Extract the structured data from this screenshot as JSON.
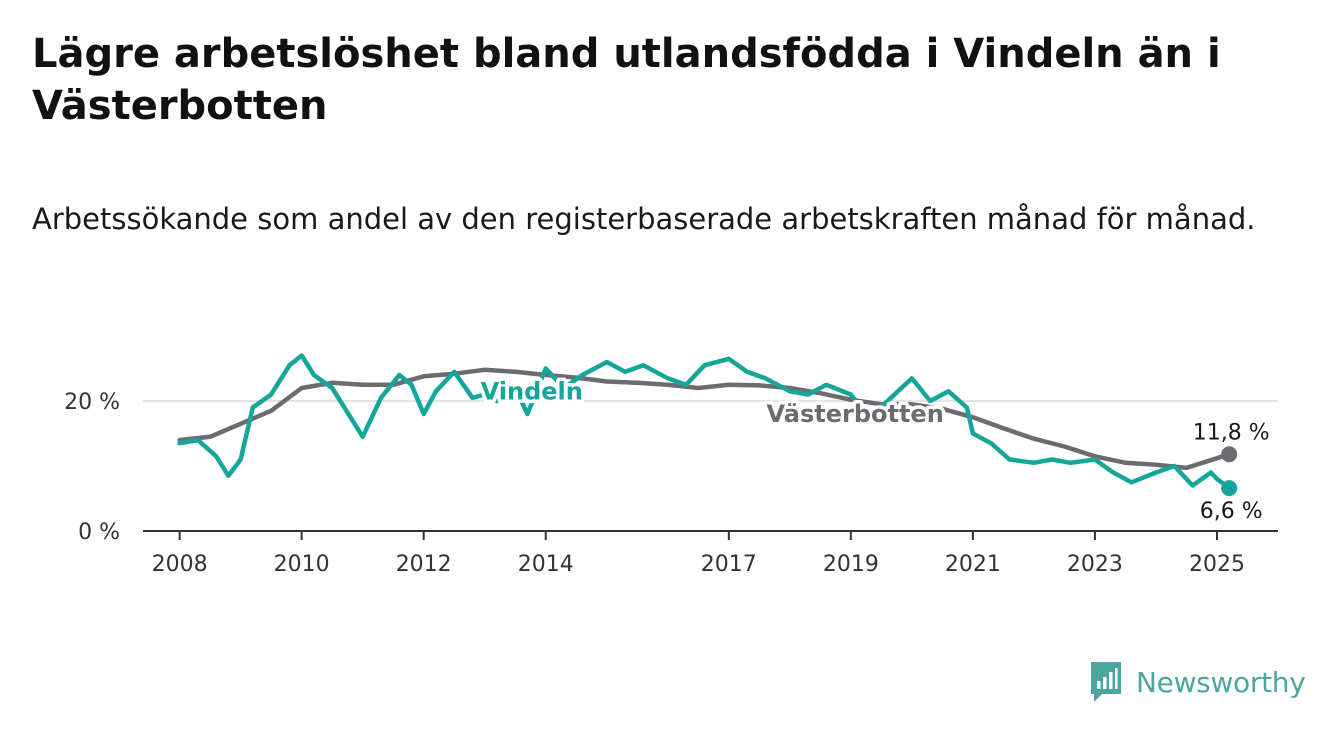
{
  "header": {
    "title": "Lägre arbetslöshet bland utlandsfödda i Vindeln än i Västerbotten",
    "subtitle": "Arbetssökande som andel av den registerbaserade arbetskraften månad för månad."
  },
  "brand": {
    "name": "Newsworthy",
    "icon": "newsworthy-logo-icon",
    "color": "#4aa69f"
  },
  "chart_data": {
    "type": "line",
    "title": "Lägre arbetslöshet bland utlandsfödda i Vindeln än i Västerbotten",
    "subtitle": "Arbetssökande som andel av den registerbaserade arbetskraften månad för månad.",
    "xlabel": "",
    "ylabel": "",
    "x_ticks": [
      "2008",
      "2010",
      "2012",
      "2014",
      "2017",
      "2019",
      "2021",
      "2023",
      "2025"
    ],
    "y_ticks": [
      "0 %",
      "20 %"
    ],
    "ylim": [
      0,
      30
    ],
    "xlim": [
      2007.4,
      2026.0
    ],
    "grid": "horizontal",
    "series": [
      {
        "name": "Västerbotten",
        "color": "#6e6b70",
        "end_label": "11,8 %",
        "points": [
          [
            2008.0,
            14.0
          ],
          [
            2008.5,
            14.5
          ],
          [
            2009.0,
            16.5
          ],
          [
            2009.5,
            18.5
          ],
          [
            2010.0,
            22.0
          ],
          [
            2010.5,
            22.8
          ],
          [
            2011.0,
            22.5
          ],
          [
            2011.5,
            22.5
          ],
          [
            2012.0,
            23.8
          ],
          [
            2012.5,
            24.2
          ],
          [
            2013.0,
            24.8
          ],
          [
            2013.5,
            24.5
          ],
          [
            2014.0,
            24.0
          ],
          [
            2014.5,
            23.6
          ],
          [
            2015.0,
            23.0
          ],
          [
            2015.5,
            22.8
          ],
          [
            2016.0,
            22.5
          ],
          [
            2016.5,
            22.0
          ],
          [
            2017.0,
            22.5
          ],
          [
            2017.5,
            22.4
          ],
          [
            2018.0,
            22.0
          ],
          [
            2018.5,
            21.2
          ],
          [
            2019.0,
            20.2
          ],
          [
            2019.5,
            19.5
          ],
          [
            2020.0,
            19.5
          ],
          [
            2020.5,
            18.8
          ],
          [
            2021.0,
            17.5
          ],
          [
            2021.5,
            15.8
          ],
          [
            2022.0,
            14.2
          ],
          [
            2022.5,
            13.0
          ],
          [
            2023.0,
            11.5
          ],
          [
            2023.5,
            10.5
          ],
          [
            2024.0,
            10.2
          ],
          [
            2024.5,
            9.7
          ],
          [
            2025.0,
            11.2
          ],
          [
            2025.2,
            11.8
          ]
        ]
      },
      {
        "name": "Vindeln",
        "color": "#15a69a",
        "end_label": "6,6 %",
        "points": [
          [
            2008.0,
            13.5
          ],
          [
            2008.3,
            14.0
          ],
          [
            2008.6,
            11.5
          ],
          [
            2008.8,
            8.5
          ],
          [
            2009.0,
            11.0
          ],
          [
            2009.2,
            19.0
          ],
          [
            2009.5,
            21.0
          ],
          [
            2009.8,
            25.5
          ],
          [
            2010.0,
            27.0
          ],
          [
            2010.2,
            24.0
          ],
          [
            2010.5,
            22.0
          ],
          [
            2010.8,
            17.5
          ],
          [
            2011.0,
            14.5
          ],
          [
            2011.3,
            20.5
          ],
          [
            2011.6,
            24.0
          ],
          [
            2011.8,
            22.5
          ],
          [
            2012.0,
            18.0
          ],
          [
            2012.2,
            21.5
          ],
          [
            2012.5,
            24.5
          ],
          [
            2012.8,
            20.5
          ],
          [
            2013.0,
            21.0
          ],
          [
            2013.2,
            20.0
          ],
          [
            2013.5,
            22.0
          ],
          [
            2013.7,
            18.0
          ],
          [
            2014.0,
            25.0
          ],
          [
            2014.3,
            22.0
          ],
          [
            2014.6,
            24.0
          ],
          [
            2015.0,
            26.0
          ],
          [
            2015.3,
            24.5
          ],
          [
            2015.6,
            25.5
          ],
          [
            2016.0,
            23.5
          ],
          [
            2016.3,
            22.5
          ],
          [
            2016.6,
            25.5
          ],
          [
            2017.0,
            26.5
          ],
          [
            2017.3,
            24.5
          ],
          [
            2017.6,
            23.5
          ],
          [
            2018.0,
            21.5
          ],
          [
            2018.3,
            21.0
          ],
          [
            2018.6,
            22.5
          ],
          [
            2019.0,
            21.0
          ],
          [
            2019.3,
            17.5
          ],
          [
            2019.6,
            20.0
          ],
          [
            2020.0,
            23.5
          ],
          [
            2020.3,
            20.0
          ],
          [
            2020.6,
            21.5
          ],
          [
            2020.9,
            19.0
          ],
          [
            2021.0,
            15.0
          ],
          [
            2021.3,
            13.5
          ],
          [
            2021.6,
            11.0
          ],
          [
            2022.0,
            10.5
          ],
          [
            2022.3,
            11.0
          ],
          [
            2022.6,
            10.5
          ],
          [
            2023.0,
            11.0
          ],
          [
            2023.3,
            9.0
          ],
          [
            2023.6,
            7.5
          ],
          [
            2024.0,
            9.0
          ],
          [
            2024.3,
            10.0
          ],
          [
            2024.6,
            7.0
          ],
          [
            2024.9,
            9.0
          ],
          [
            2025.0,
            8.0
          ],
          [
            2025.2,
            6.6
          ]
        ]
      }
    ]
  }
}
